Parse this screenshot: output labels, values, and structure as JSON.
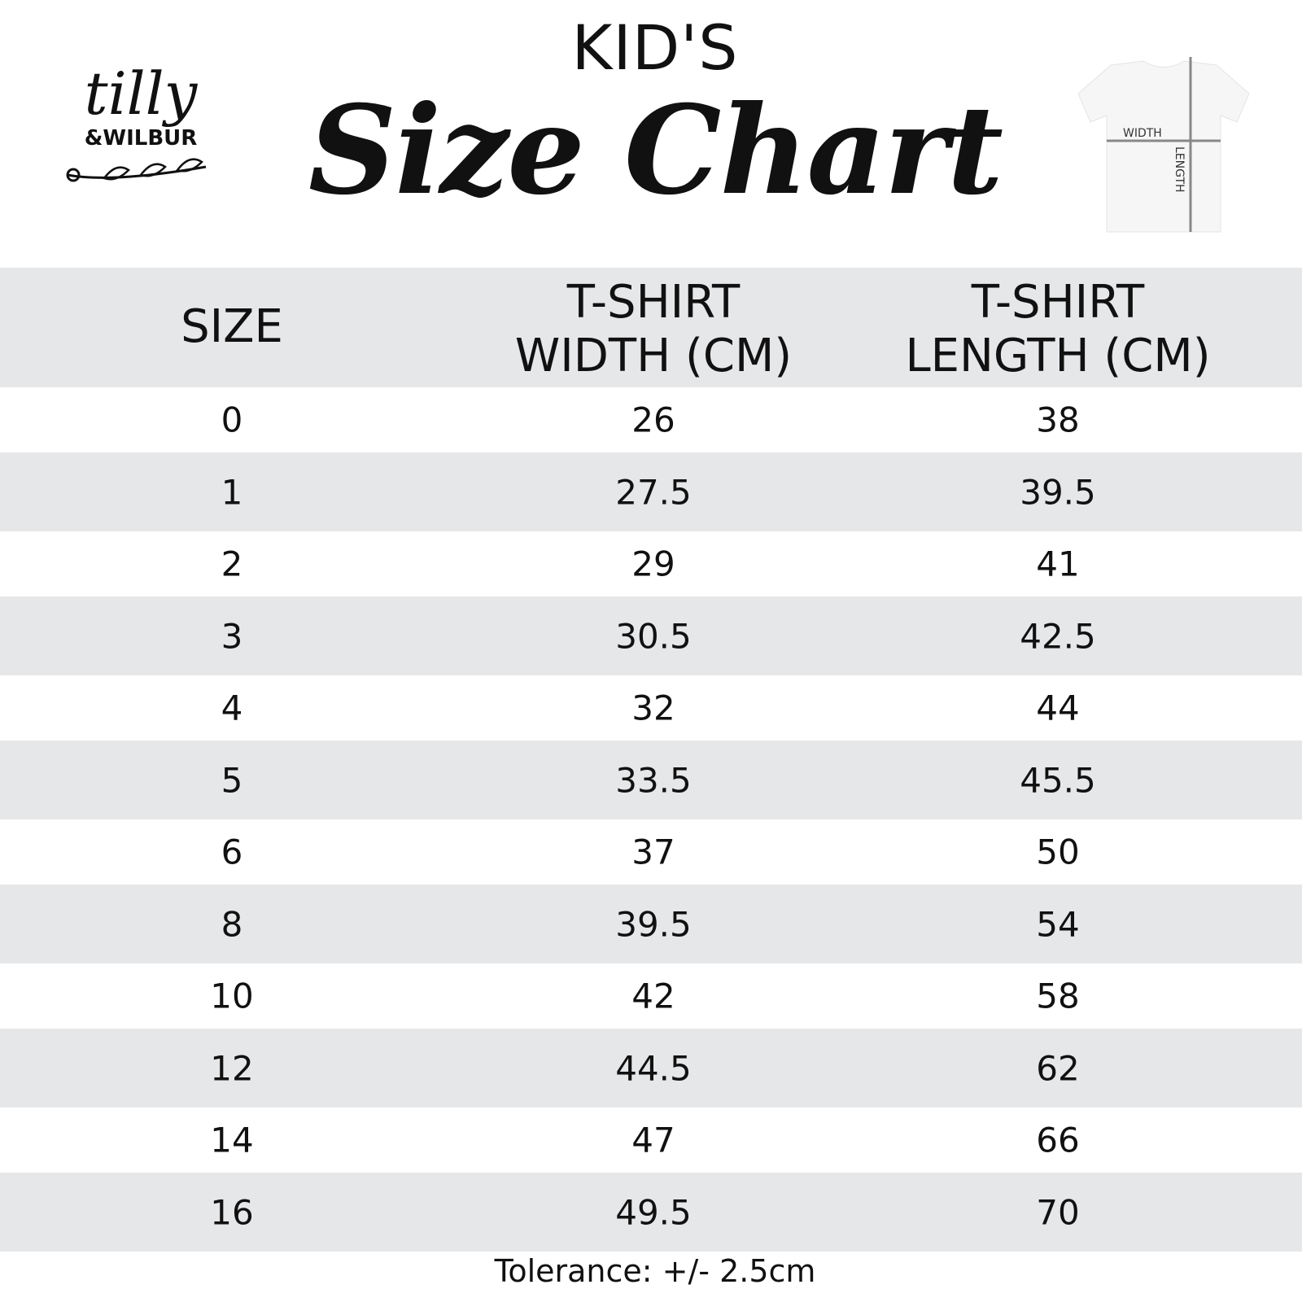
{
  "header": {
    "kicker": "KID'S",
    "title": "Size Chart"
  },
  "logo": {
    "line1": "tilly",
    "line2": "&WILBUR"
  },
  "diagram": {
    "width_label": "WIDTH",
    "length_label": "LENGTH"
  },
  "table": {
    "columns": [
      "SIZE",
      "T-SHIRT WIDTH (CM)",
      "T-SHIRT LENGTH (CM)"
    ],
    "column_lines": [
      [
        "SIZE"
      ],
      [
        "T-SHIRT",
        "WIDTH (CM)"
      ],
      [
        "T-SHIRT",
        "LENGTH (CM)"
      ]
    ],
    "rows": [
      [
        "0",
        "26",
        "38"
      ],
      [
        "1",
        "27.5",
        "39.5"
      ],
      [
        "2",
        "29",
        "41"
      ],
      [
        "3",
        "30.5",
        "42.5"
      ],
      [
        "4",
        "32",
        "44"
      ],
      [
        "5",
        "33.5",
        "45.5"
      ],
      [
        "6",
        "37",
        "50"
      ],
      [
        "8",
        "39.5",
        "54"
      ],
      [
        "10",
        "42",
        "58"
      ],
      [
        "12",
        "44.5",
        "62"
      ],
      [
        "14",
        "47",
        "66"
      ],
      [
        "16",
        "49.5",
        "70"
      ]
    ],
    "stripe_color": "#e6e7e9"
  },
  "footer": {
    "tolerance": "Tolerance: +/- 2.5cm"
  }
}
